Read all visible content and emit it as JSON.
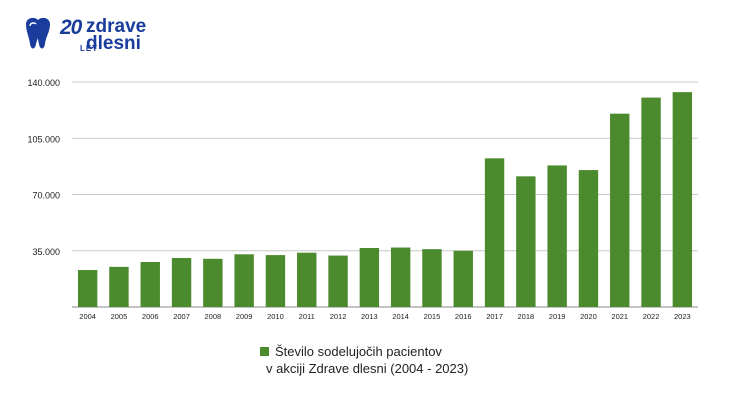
{
  "logo": {
    "number": "20",
    "sub": "LET",
    "line1": "zdrave",
    "line2": "dlesni",
    "color": "#1a3c9c"
  },
  "colors": {
    "bar": "#4c8a2e",
    "axis": "#888888",
    "grid": "#c8c8c8",
    "text": "#222222"
  },
  "chart_data": {
    "type": "bar",
    "categories": [
      "2004",
      "2005",
      "2006",
      "2007",
      "2008",
      "2009",
      "2010",
      "2011",
      "2012",
      "2013",
      "2014",
      "2015",
      "2016",
      "2017",
      "2018",
      "2019",
      "2020",
      "2021",
      "2022",
      "2023"
    ],
    "values": [
      23000,
      25000,
      28000,
      30500,
      30000,
      32800,
      32300,
      33800,
      32000,
      36700,
      37000,
      36000,
      35000,
      92500,
      81300,
      88100,
      85200,
      120300,
      130300,
      133700
    ],
    "ylim": [
      0,
      140000
    ],
    "yticks": [
      35000,
      70000,
      105000,
      140000
    ],
    "ytick_labels": [
      "35.000",
      "70.000",
      "105.000",
      "140.000"
    ],
    "grid": true,
    "legend_position": "bottom",
    "legend_label_line1": "Število sodelujočih pacientov",
    "legend_label_line2": "v akciji Zdrave dlesni (2004 - 2023)"
  }
}
